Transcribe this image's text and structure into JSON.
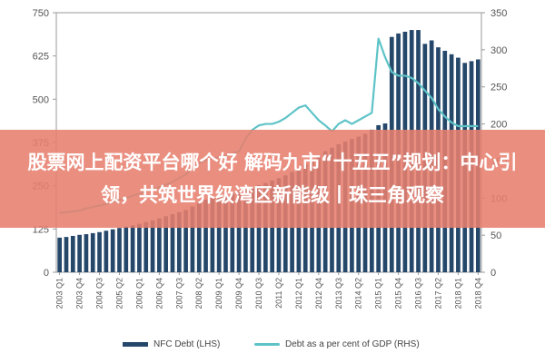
{
  "chart_data": {
    "type": "bar",
    "categories": [
      "2003 Q1",
      "2003 Q2",
      "2003 Q3",
      "2003 Q4",
      "2004 Q1",
      "2004 Q2",
      "2004 Q3",
      "2004 Q4",
      "2005 Q1",
      "2005 Q2",
      "2005 Q3",
      "2005 Q4",
      "2006 Q1",
      "2006 Q2",
      "2006 Q3",
      "2006 Q4",
      "2007 Q1",
      "2007 Q2",
      "2007 Q3",
      "2007 Q4",
      "2008 Q1",
      "2008 Q2",
      "2008 Q3",
      "2008 Q4",
      "2009 Q1",
      "2009 Q2",
      "2009 Q3",
      "2009 Q4",
      "2010 Q1",
      "2010 Q2",
      "2010 Q3",
      "2010 Q4",
      "2011 Q1",
      "2011 Q2",
      "2011 Q3",
      "2011 Q4",
      "2012 Q1",
      "2012 Q2",
      "2012 Q3",
      "2012 Q4",
      "2013 Q1",
      "2013 Q2",
      "2013 Q3",
      "2013 Q4",
      "2014 Q1",
      "2014 Q2",
      "2014 Q3",
      "2014 Q4",
      "2015 Q1",
      "2015 Q2",
      "2015 Q3",
      "2015 Q4",
      "2016 Q1",
      "2016 Q2",
      "2016 Q3",
      "2016 Q4",
      "2017 Q1",
      "2017 Q2",
      "2017 Q3",
      "2017 Q4",
      "2018 Q1",
      "2018 Q2",
      "2018 Q3",
      "2018 Q4"
    ],
    "x_tick_labels": [
      "2003 Q1",
      "2003 Q4",
      "2004 Q3",
      "2005 Q2",
      "2006 Q1",
      "2006 Q4",
      "2007 Q3",
      "2008 Q2",
      "2009 Q1",
      "2009 Q4",
      "2010 Q3",
      "2011 Q2",
      "2012 Q1",
      "2012 Q4",
      "2013 Q3",
      "2014 Q2",
      "2015 Q1",
      "2015 Q4",
      "2016 Q3",
      "2017 Q2",
      "2018 Q1",
      "2018 Q4"
    ],
    "series": [
      {
        "name": "NFC Debt (LHS)",
        "axis": "left",
        "color": "#24476a",
        "values": [
          100,
          102,
          105,
          108,
          110,
          113,
          116,
          120,
          124,
          128,
          132,
          136,
          140,
          145,
          150,
          156,
          162,
          168,
          174,
          180,
          190,
          200,
          210,
          218,
          222,
          226,
          230,
          234,
          240,
          245,
          252,
          258,
          265,
          272,
          280,
          290,
          300,
          312,
          325,
          338,
          350,
          360,
          370,
          378,
          385,
          392,
          400,
          412,
          425,
          430,
          680,
          690,
          695,
          700,
          700,
          660,
          670,
          650,
          640,
          630,
          620,
          605,
          610,
          615
        ]
      },
      {
        "name": "Debt as a per cent of GDP (RHS)",
        "axis": "right",
        "color": "#5ec3c7",
        "values": [
          80,
          81,
          82,
          83,
          86,
          88,
          90,
          92,
          95,
          98,
          100,
          103,
          106,
          109,
          112,
          115,
          118,
          122,
          127,
          132,
          140,
          147,
          151,
          154,
          155,
          157,
          160,
          163,
          180,
          192,
          198,
          200,
          200,
          203,
          208,
          215,
          222,
          225,
          215,
          205,
          198,
          190,
          200,
          205,
          200,
          205,
          210,
          215,
          315,
          290,
          270,
          265,
          265,
          262,
          255,
          245,
          235,
          220,
          210,
          202,
          197,
          197,
          197,
          197
        ]
      }
    ],
    "yaxis_left": {
      "ylim": [
        0,
        750
      ],
      "ticks": [
        0,
        125,
        250,
        375,
        500,
        625,
        750
      ]
    },
    "yaxis_right": {
      "ylim": [
        0,
        350
      ],
      "ticks": [
        0,
        50,
        100,
        150,
        200,
        250,
        300,
        350
      ]
    },
    "grid": false,
    "legend_position": "bottom"
  },
  "overlay": {
    "text": "股票网上配资平台哪个好 解码九市“十五五”规划：中心引领，共筑世界级湾区新能级丨珠三角观察"
  },
  "legend": {
    "items": [
      "NFC Debt (LHS)",
      "Debt as a per cent of GDP (RHS)"
    ]
  }
}
